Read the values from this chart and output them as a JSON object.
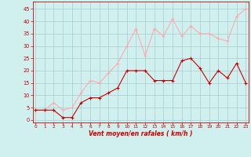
{
  "x": [
    0,
    1,
    2,
    3,
    4,
    5,
    6,
    7,
    8,
    9,
    10,
    11,
    12,
    13,
    14,
    15,
    16,
    17,
    18,
    19,
    20,
    21,
    22,
    23
  ],
  "vent_moyen": [
    4,
    4,
    4,
    1,
    1,
    7,
    9,
    9,
    11,
    13,
    20,
    20,
    20,
    16,
    16,
    16,
    24,
    25,
    21,
    15,
    20,
    17,
    23,
    15
  ],
  "en_rafales": [
    4,
    4,
    7,
    4,
    5,
    11,
    16,
    15,
    19,
    23,
    30,
    37,
    26,
    37,
    34,
    41,
    34,
    38,
    35,
    35,
    33,
    32,
    42,
    45
  ],
  "line_color_moyen": "#cc0000",
  "line_color_rafales": "#ffaaaa",
  "bg_color": "#cff0ee",
  "grid_color": "#aacccc",
  "xlabel": "Vent moyen/en rafales ( km/h )",
  "ylabel_ticks": [
    0,
    5,
    10,
    15,
    20,
    25,
    30,
    35,
    40,
    45
  ],
  "xlim": [
    -0.3,
    23.3
  ],
  "ylim": [
    -1,
    48
  ]
}
